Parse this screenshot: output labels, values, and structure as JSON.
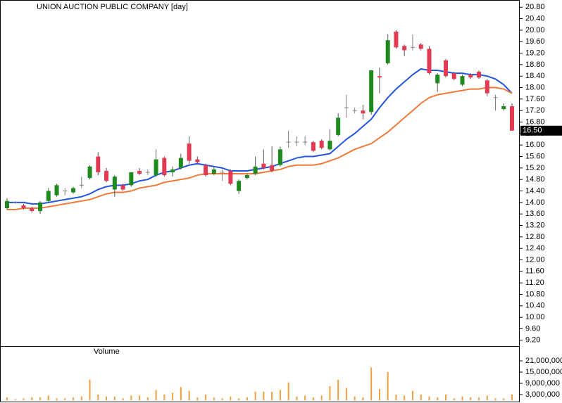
{
  "chart_data": [
    {
      "type": "candlestick",
      "title": "UNION AUCTION PUBLIC COMPANY [day]",
      "open": [
        13.8,
        14.0,
        13.9,
        13.8,
        13.7,
        14.05,
        14.25,
        14.4,
        14.35,
        14.6,
        14.85,
        15.6,
        15.1,
        14.45,
        14.6,
        14.6,
        15.1,
        15.05,
        14.95,
        15.55,
        15.05,
        15.2,
        16.05,
        15.5,
        15.3,
        15.0,
        15.05,
        15.1,
        14.4,
        14.85,
        15.0,
        15.35,
        15.3,
        15.3,
        16.1,
        16.1,
        16.1,
        16.1,
        16.15,
        15.85,
        16.35,
        17.3,
        17.2,
        17.2,
        17.15,
        18.4,
        18.85,
        19.95,
        19.45,
        19.4,
        19.5,
        19.35,
        18.15,
        18.95,
        18.5,
        18.1,
        18.45,
        18.55,
        18.25,
        17.65,
        17.25,
        17.35
      ],
      "high": [
        14.15,
        14.05,
        13.95,
        13.85,
        14.05,
        14.5,
        14.65,
        14.5,
        14.55,
        14.9,
        15.3,
        15.75,
        15.2,
        14.95,
        14.65,
        15.05,
        15.2,
        15.15,
        15.85,
        15.6,
        15.25,
        15.7,
        16.3,
        15.6,
        15.35,
        15.25,
        15.15,
        15.15,
        14.8,
        15.0,
        15.6,
        15.85,
        15.95,
        15.95,
        16.5,
        16.3,
        16.3,
        16.15,
        16.2,
        16.55,
        17.1,
        17.75,
        17.3,
        17.4,
        18.6,
        18.7,
        19.85,
        20.0,
        19.5,
        19.85,
        19.55,
        19.45,
        18.5,
        19.0,
        18.55,
        18.45,
        18.5,
        18.6,
        18.3,
        17.75,
        17.45,
        17.45
      ],
      "low": [
        13.75,
        13.95,
        13.75,
        13.65,
        13.6,
        14.0,
        14.2,
        14.25,
        14.3,
        14.5,
        14.8,
        14.95,
        14.7,
        14.2,
        14.4,
        14.55,
        14.95,
        14.95,
        14.9,
        14.9,
        14.9,
        15.15,
        15.35,
        15.35,
        14.9,
        14.95,
        14.75,
        14.6,
        14.3,
        14.8,
        14.95,
        15.15,
        15.05,
        15.25,
        15.9,
        15.95,
        16.0,
        15.75,
        15.85,
        15.8,
        16.3,
        16.95,
        17.1,
        16.9,
        17.05,
        17.8,
        18.8,
        19.35,
        19.1,
        19.3,
        19.3,
        18.45,
        17.85,
        18.35,
        18.25,
        18.05,
        18.3,
        18.3,
        17.7,
        17.2,
        17.2,
        16.5
      ],
      "close": [
        14.05,
        14.0,
        13.8,
        13.7,
        14.0,
        14.4,
        14.6,
        14.4,
        14.5,
        14.6,
        15.25,
        15.05,
        14.75,
        14.9,
        14.45,
        15.05,
        15.0,
        15.05,
        15.5,
        14.95,
        15.15,
        15.55,
        15.45,
        15.4,
        14.95,
        15.15,
        15.05,
        14.65,
        14.75,
        14.95,
        15.25,
        15.2,
        15.1,
        15.85,
        16.1,
        16.1,
        16.1,
        15.8,
        15.9,
        16.15,
        16.95,
        17.3,
        17.2,
        17.1,
        18.6,
        18.35,
        19.65,
        19.4,
        19.3,
        19.4,
        19.35,
        18.5,
        18.45,
        18.4,
        18.3,
        18.4,
        18.35,
        18.35,
        17.8,
        17.65,
        17.35,
        16.5
      ],
      "up_color": "#1e8a1e",
      "down_color": "#e23a52",
      "doji_color": "#808080",
      "overlays": [
        {
          "color": "#2255dd",
          "values": [
            14.0,
            14.0,
            14.0,
            13.95,
            13.95,
            14.0,
            14.05,
            14.1,
            14.15,
            14.2,
            14.3,
            14.45,
            14.55,
            14.6,
            14.6,
            14.65,
            14.75,
            14.8,
            14.95,
            15.05,
            15.1,
            15.2,
            15.3,
            15.35,
            15.3,
            15.25,
            15.2,
            15.1,
            15.1,
            15.1,
            15.15,
            15.2,
            15.25,
            15.35,
            15.45,
            15.55,
            15.6,
            15.6,
            15.65,
            15.7,
            15.95,
            16.2,
            16.4,
            16.65,
            16.9,
            17.3,
            17.65,
            17.95,
            18.2,
            18.45,
            18.65,
            18.6,
            18.6,
            18.55,
            18.5,
            18.5,
            18.45,
            18.45,
            18.4,
            18.3,
            18.1,
            17.8
          ]
        },
        {
          "color": "#f07a3a",
          "values": [
            13.75,
            13.75,
            13.8,
            13.8,
            13.8,
            13.85,
            13.9,
            13.95,
            14.0,
            14.05,
            14.1,
            14.2,
            14.3,
            14.35,
            14.35,
            14.4,
            14.5,
            14.55,
            14.6,
            14.7,
            14.75,
            14.8,
            14.85,
            14.95,
            15.0,
            15.0,
            15.0,
            15.0,
            15.0,
            15.0,
            15.0,
            15.05,
            15.1,
            15.15,
            15.25,
            15.3,
            15.3,
            15.3,
            15.35,
            15.45,
            15.55,
            15.7,
            15.85,
            15.95,
            16.05,
            16.25,
            16.45,
            16.7,
            16.95,
            17.2,
            17.45,
            17.65,
            17.75,
            17.8,
            17.85,
            17.9,
            17.95,
            17.95,
            18.0,
            18.0,
            17.95,
            17.8
          ]
        }
      ],
      "last_price": {
        "value": 16.5,
        "label": "16.50"
      },
      "ylim": [
        9.0,
        21.05
      ],
      "yticks": [
        {
          "value": 9.2,
          "label": "9.20"
        },
        {
          "value": 9.6,
          "label": "9.60"
        },
        {
          "value": 10.0,
          "label": "10.00"
        },
        {
          "value": 10.4,
          "label": "10.40"
        },
        {
          "value": 10.8,
          "label": "10.80"
        },
        {
          "value": 11.2,
          "label": "11.20"
        },
        {
          "value": 11.6,
          "label": "11.60"
        },
        {
          "value": 12.0,
          "label": "12.00"
        },
        {
          "value": 12.4,
          "label": "12.40"
        },
        {
          "value": 12.8,
          "label": "12.80"
        },
        {
          "value": 13.2,
          "label": "13.20"
        },
        {
          "value": 13.6,
          "label": "13.60"
        },
        {
          "value": 14.0,
          "label": "14.00"
        },
        {
          "value": 14.4,
          "label": "14.40"
        },
        {
          "value": 14.8,
          "label": "14.80"
        },
        {
          "value": 15.2,
          "label": "15.20"
        },
        {
          "value": 15.6,
          "label": "15.60"
        },
        {
          "value": 16.0,
          "label": "16.00"
        },
        {
          "value": 16.4,
          "label": "16.40"
        },
        {
          "value": 16.8,
          "label": "16.80"
        },
        {
          "value": 17.2,
          "label": "17.20"
        },
        {
          "value": 17.6,
          "label": "17.60"
        },
        {
          "value": 18.0,
          "label": "18.00"
        },
        {
          "value": 18.4,
          "label": "18.40"
        },
        {
          "value": 18.8,
          "label": "18.80"
        },
        {
          "value": 19.2,
          "label": "19.20"
        },
        {
          "value": 19.6,
          "label": "19.60"
        },
        {
          "value": 20.0,
          "label": "20.00"
        },
        {
          "value": 20.4,
          "label": "20.40"
        },
        {
          "value": 20.8,
          "label": "20.80"
        }
      ]
    },
    {
      "type": "bar",
      "title": "Volume",
      "color": "#f0a040",
      "values": [
        1500000,
        500000,
        1000000,
        1500000,
        1500000,
        2500000,
        1000000,
        1000000,
        1500000,
        2000000,
        11000000,
        3000000,
        2000000,
        2000000,
        1000000,
        2500000,
        2500000,
        1500000,
        5500000,
        3000000,
        4000000,
        7000000,
        5000000,
        1500000,
        3000000,
        1500000,
        1000000,
        2000000,
        1000000,
        1500000,
        4500000,
        4500000,
        4500000,
        5500000,
        9500000,
        2000000,
        2500000,
        1500000,
        2500000,
        7500000,
        11000000,
        6500000,
        2000000,
        1500000,
        17500000,
        6000000,
        15000000,
        3000000,
        2500000,
        5000000,
        3000000,
        2000000,
        1500000,
        3000000,
        1000000,
        2000000,
        1500000,
        1500000,
        2500000,
        1000000,
        1000000,
        3000000
      ],
      "ylim": [
        0,
        28900000
      ],
      "yticks": [
        {
          "value": 3000000,
          "label": "3,000,000"
        },
        {
          "value": 9000000,
          "label": "9,000,000"
        },
        {
          "value": 15000000,
          "label": "15,000,000"
        },
        {
          "value": 21000000,
          "label": "21,000,000"
        }
      ]
    }
  ]
}
